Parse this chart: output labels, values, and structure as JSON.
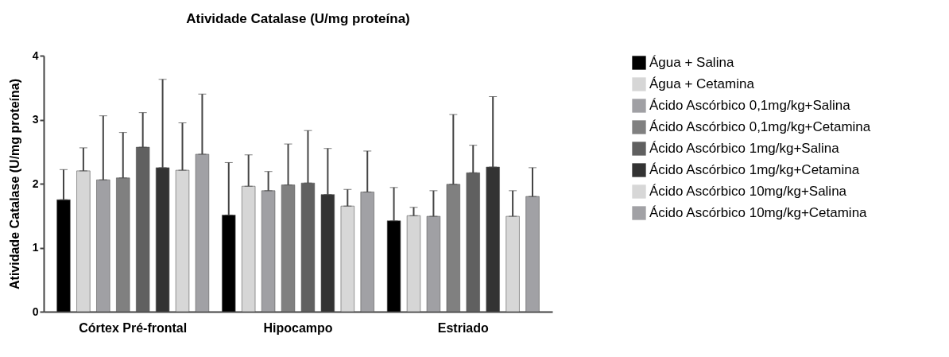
{
  "chart_data": {
    "type": "bar",
    "title": "Atividade Catalase (U/mg  proteína)",
    "ylabel": "Atividade Catalase (U/mg  proteína)",
    "categories": [
      "Córtex Pré-frontal",
      "Hipocampo",
      "Estriado"
    ],
    "ylim": [
      0,
      4
    ],
    "yticks": [
      0,
      1,
      2,
      3,
      4
    ],
    "grid": false,
    "legend": "right",
    "series": [
      {
        "name": "Água + Salina",
        "color": "#000000",
        "values": [
          1.75,
          1.51,
          1.42
        ],
        "errors": [
          [
            1.75,
            2.22
          ],
          [
            1.51,
            2.33
          ],
          [
            1.42,
            1.94
          ]
        ]
      },
      {
        "name": "Água + Cetamina",
        "color": "#d6d6d6",
        "values": [
          2.2,
          1.96,
          1.5
        ],
        "errors": [
          [
            2.2,
            2.56
          ],
          [
            1.96,
            2.45
          ],
          [
            1.5,
            1.63
          ]
        ]
      },
      {
        "name": "Ácido Ascórbico 0,1mg/kg+Salina",
        "color": "#a0a0a4",
        "values": [
          2.06,
          1.89,
          1.49
        ],
        "errors": [
          [
            2.06,
            3.06
          ],
          [
            1.89,
            2.19
          ],
          [
            1.49,
            1.89
          ]
        ]
      },
      {
        "name": "Ácido Ascórbico 0,1mg/kg+Cetamina",
        "color": "#808080",
        "values": [
          2.09,
          1.98,
          1.99
        ],
        "errors": [
          [
            2.09,
            2.8
          ],
          [
            1.98,
            2.62
          ],
          [
            1.99,
            3.08
          ]
        ]
      },
      {
        "name": "Ácido Ascórbico 1mg/kg+Salina",
        "color": "#606060",
        "values": [
          2.57,
          2.01,
          2.17
        ],
        "errors": [
          [
            2.57,
            3.11
          ],
          [
            2.01,
            2.83
          ],
          [
            2.17,
            2.6
          ]
        ]
      },
      {
        "name": "Ácido Ascórbico 1mg/kg+Cetamina",
        "color": "#333333",
        "values": [
          2.25,
          1.83,
          2.26
        ],
        "errors": [
          [
            2.25,
            3.63
          ],
          [
            1.83,
            2.55
          ],
          [
            2.26,
            3.36
          ]
        ]
      },
      {
        "name": "Ácido Ascórbico 10mg/kg+Salina",
        "color": "#d7d7d7",
        "values": [
          2.21,
          1.65,
          1.49
        ],
        "errors": [
          [
            2.21,
            2.95
          ],
          [
            1.65,
            1.91
          ],
          [
            1.49,
            1.89
          ]
        ]
      },
      {
        "name": "Ácido Ascórbico 10mg/kg+Cetamina",
        "color": "#a1a1a5",
        "values": [
          2.46,
          1.87,
          1.8
        ],
        "errors": [
          [
            2.46,
            3.4
          ],
          [
            1.87,
            2.51
          ],
          [
            1.8,
            2.25
          ]
        ]
      }
    ]
  }
}
